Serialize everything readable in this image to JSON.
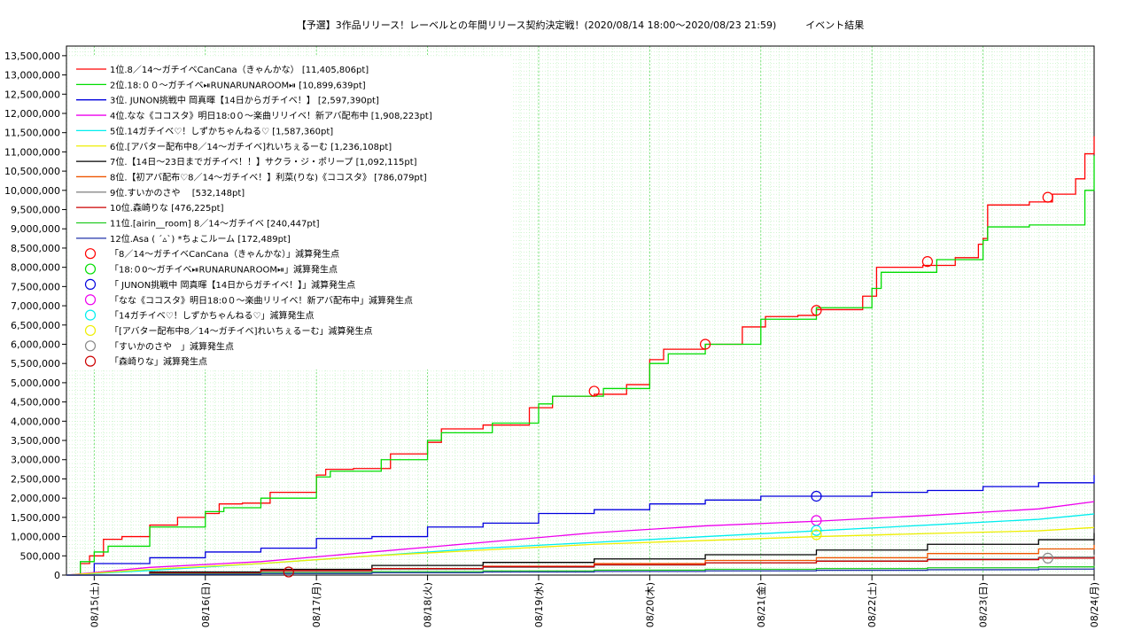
{
  "chart_data": {
    "type": "line",
    "title": "【予選】3作品リリース！レーベルとの年間リリース契約決定戦！(2020/08/14 18:00〜2020/08/23 21:59)　　　イベント結果",
    "xlabel": "",
    "ylabel": "",
    "x_ticks": [
      "08/15(土)",
      "08/16(日)",
      "08/17(月)",
      "08/18(火)",
      "08/19(水)",
      "08/20(木)",
      "08/21(金)",
      "08/22(土)",
      "08/23(日)",
      "08/24(月)"
    ],
    "xlim": [
      "2020-08-14 18:00",
      "2020-08-24 00:00"
    ],
    "ylim": [
      0,
      13750000
    ],
    "y_ticks": [
      0,
      500000,
      1000000,
      1500000,
      2000000,
      2500000,
      3000000,
      3500000,
      4000000,
      4500000,
      5000000,
      5500000,
      6000000,
      6500000,
      7000000,
      7500000,
      8000000,
      8500000,
      9000000,
      9500000,
      10000000,
      10500000,
      11000000,
      11500000,
      12000000,
      12500000,
      13000000,
      13500000
    ],
    "grid": true,
    "legend_position": "top-left",
    "series": [
      {
        "name": "1位.8／14〜ガチイベCanCana（きゃんかな）  [11,405,806pt]",
        "color": "#ff0000",
        "step": true,
        "points": [
          [
            "2020-08-14 18:00",
            0
          ],
          [
            "2020-08-14 21:00",
            300000
          ],
          [
            "2020-08-14 23:00",
            500000
          ],
          [
            "2020-08-15 02:00",
            930000
          ],
          [
            "2020-08-15 06:00",
            1000000
          ],
          [
            "2020-08-15 12:00",
            1300000
          ],
          [
            "2020-08-15 18:00",
            1500000
          ],
          [
            "2020-08-16 00:00",
            1600000
          ],
          [
            "2020-08-16 03:00",
            1850000
          ],
          [
            "2020-08-16 08:00",
            1870000
          ],
          [
            "2020-08-16 14:00",
            2150000
          ],
          [
            "2020-08-17 00:00",
            2600000
          ],
          [
            "2020-08-17 02:00",
            2750000
          ],
          [
            "2020-08-17 08:00",
            2770000
          ],
          [
            "2020-08-17 16:00",
            3150000
          ],
          [
            "2020-08-18 00:00",
            3450000
          ],
          [
            "2020-08-18 03:00",
            3800000
          ],
          [
            "2020-08-18 12:00",
            3900000
          ],
          [
            "2020-08-18 22:00",
            4350000
          ],
          [
            "2020-08-19 03:00",
            4650000
          ],
          [
            "2020-08-19 12:00",
            4700000
          ],
          [
            "2020-08-19 19:00",
            4950000
          ],
          [
            "2020-08-20 00:00",
            5600000
          ],
          [
            "2020-08-20 03:00",
            5870000
          ],
          [
            "2020-08-20 12:00",
            6000000
          ],
          [
            "2020-08-20 20:00",
            6450000
          ],
          [
            "2020-08-21 01:00",
            6720000
          ],
          [
            "2020-08-21 08:00",
            6750000
          ],
          [
            "2020-08-21 12:00",
            6900000
          ],
          [
            "2020-08-21 22:00",
            7250000
          ],
          [
            "2020-08-22 01:00",
            8000000
          ],
          [
            "2020-08-22 11:00",
            8050000
          ],
          [
            "2020-08-22 18:00",
            8250000
          ],
          [
            "2020-08-22 23:00",
            8600000
          ],
          [
            "2020-08-23 00:00",
            8750000
          ],
          [
            "2020-08-23 01:00",
            9620000
          ],
          [
            "2020-08-23 10:00",
            9700000
          ],
          [
            "2020-08-23 15:00",
            9900000
          ],
          [
            "2020-08-23 20:00",
            10300000
          ],
          [
            "2020-08-23 22:00",
            10950000
          ],
          [
            "2020-08-24 00:00",
            11405806
          ]
        ]
      },
      {
        "name": "2位.18:００〜ガチイベ⏯RUNARUNAROOM⏯  [10,899,639pt]",
        "color": "#00dd00",
        "step": true,
        "points": [
          [
            "2020-08-14 18:00",
            0
          ],
          [
            "2020-08-14 21:00",
            350000
          ],
          [
            "2020-08-15 00:00",
            600000
          ],
          [
            "2020-08-15 03:00",
            750000
          ],
          [
            "2020-08-15 12:00",
            1250000
          ],
          [
            "2020-08-16 00:00",
            1650000
          ],
          [
            "2020-08-16 04:00",
            1750000
          ],
          [
            "2020-08-16 12:00",
            2000000
          ],
          [
            "2020-08-17 00:00",
            2550000
          ],
          [
            "2020-08-17 03:00",
            2700000
          ],
          [
            "2020-08-17 14:00",
            3000000
          ],
          [
            "2020-08-18 00:00",
            3500000
          ],
          [
            "2020-08-18 03:00",
            3700000
          ],
          [
            "2020-08-18 14:00",
            3950000
          ],
          [
            "2020-08-19 00:00",
            4450000
          ],
          [
            "2020-08-19 03:00",
            4650000
          ],
          [
            "2020-08-19 14:00",
            4850000
          ],
          [
            "2020-08-20 00:00",
            5500000
          ],
          [
            "2020-08-20 04:00",
            5750000
          ],
          [
            "2020-08-20 12:00",
            6000000
          ],
          [
            "2020-08-21 00:00",
            6650000
          ],
          [
            "2020-08-21 12:00",
            6950000
          ],
          [
            "2020-08-22 00:00",
            7450000
          ],
          [
            "2020-08-22 02:00",
            7870000
          ],
          [
            "2020-08-22 14:00",
            8200000
          ],
          [
            "2020-08-23 00:00",
            8700000
          ],
          [
            "2020-08-23 01:00",
            9050000
          ],
          [
            "2020-08-23 10:00",
            9100000
          ],
          [
            "2020-08-23 22:00",
            10000000
          ],
          [
            "2020-08-24 00:00",
            10899639
          ]
        ]
      },
      {
        "name": "3位. JUNON挑戦中 岡真暉【14日からガチイベ！】 [2,597,390pt]",
        "color": "#0000dd",
        "step": true,
        "points": [
          [
            "2020-08-14 18:00",
            0
          ],
          [
            "2020-08-15 00:00",
            300000
          ],
          [
            "2020-08-15 12:00",
            450000
          ],
          [
            "2020-08-16 00:00",
            600000
          ],
          [
            "2020-08-16 12:00",
            700000
          ],
          [
            "2020-08-17 00:00",
            950000
          ],
          [
            "2020-08-17 12:00",
            1000000
          ],
          [
            "2020-08-18 00:00",
            1250000
          ],
          [
            "2020-08-18 12:00",
            1350000
          ],
          [
            "2020-08-19 00:00",
            1600000
          ],
          [
            "2020-08-19 12:00",
            1700000
          ],
          [
            "2020-08-20 00:00",
            1850000
          ],
          [
            "2020-08-20 12:00",
            1950000
          ],
          [
            "2020-08-21 00:00",
            2050000
          ],
          [
            "2020-08-22 00:00",
            2150000
          ],
          [
            "2020-08-22 12:00",
            2200000
          ],
          [
            "2020-08-23 00:00",
            2300000
          ],
          [
            "2020-08-23 12:00",
            2400000
          ],
          [
            "2020-08-24 00:00",
            2597390
          ]
        ]
      },
      {
        "name": "4位.なな《ココスタ》明日18:0０〜楽曲リリイベ！新アバ配布中 [1,908,223pt]",
        "color": "#ee00ee",
        "step": false,
        "points": [
          [
            "2020-08-14 18:00",
            0
          ],
          [
            "2020-08-15 12:00",
            200000
          ],
          [
            "2020-08-16 12:00",
            350000
          ],
          [
            "2020-08-17 12:00",
            600000
          ],
          [
            "2020-08-18 12:00",
            850000
          ],
          [
            "2020-08-19 12:00",
            1100000
          ],
          [
            "2020-08-20 12:00",
            1280000
          ],
          [
            "2020-08-21 12:00",
            1400000
          ],
          [
            "2020-08-22 12:00",
            1550000
          ],
          [
            "2020-08-23 12:00",
            1720000
          ],
          [
            "2020-08-24 00:00",
            1908223
          ]
        ]
      },
      {
        "name": "5位.14ガチイベ♡！しずかちゃんねる♡ [1,587,360pt]",
        "color": "#00eeee",
        "step": false,
        "points": [
          [
            "2020-08-14 18:00",
            0
          ],
          [
            "2020-08-15 12:00",
            120000
          ],
          [
            "2020-08-16 12:00",
            300000
          ],
          [
            "2020-08-17 12:00",
            500000
          ],
          [
            "2020-08-18 12:00",
            700000
          ],
          [
            "2020-08-19 12:00",
            850000
          ],
          [
            "2020-08-20 12:00",
            1000000
          ],
          [
            "2020-08-21 12:00",
            1150000
          ],
          [
            "2020-08-22 12:00",
            1300000
          ],
          [
            "2020-08-23 12:00",
            1450000
          ],
          [
            "2020-08-24 00:00",
            1587360
          ]
        ]
      },
      {
        "name": "6位.[アバター配布中8／14〜ガチイベ]れいちぇるーむ [1,236,108pt]",
        "color": "#eeee00",
        "step": false,
        "points": [
          [
            "2020-08-14 18:00",
            0
          ],
          [
            "2020-08-15 12:00",
            150000
          ],
          [
            "2020-08-16 12:00",
            300000
          ],
          [
            "2020-08-17 12:00",
            500000
          ],
          [
            "2020-08-18 12:00",
            650000
          ],
          [
            "2020-08-19 12:00",
            800000
          ],
          [
            "2020-08-20 12:00",
            900000
          ],
          [
            "2020-08-21 12:00",
            1000000
          ],
          [
            "2020-08-22 12:00",
            1080000
          ],
          [
            "2020-08-23 12:00",
            1150000
          ],
          [
            "2020-08-24 00:00",
            1236108
          ]
        ]
      },
      {
        "name": "7位.【14日〜23日までガチイベ！！】サクラ・ジ・ポリープ [1,092,115pt]",
        "color": "#000000",
        "step": true,
        "points": [
          [
            "2020-08-14 18:00",
            0
          ],
          [
            "2020-08-15 12:00",
            80000
          ],
          [
            "2020-08-16 12:00",
            150000
          ],
          [
            "2020-08-17 12:00",
            250000
          ],
          [
            "2020-08-18 12:00",
            330000
          ],
          [
            "2020-08-19 12:00",
            420000
          ],
          [
            "2020-08-20 12:00",
            530000
          ],
          [
            "2020-08-21 12:00",
            650000
          ],
          [
            "2020-08-22 12:00",
            800000
          ],
          [
            "2020-08-23 12:00",
            920000
          ],
          [
            "2020-08-24 00:00",
            1092115
          ]
        ]
      },
      {
        "name": "8位.【初アバ配布♡8／14〜ガチイベ！】利菜(りな)《ココスタ》 [786,079pt]",
        "color": "#ee5500",
        "step": true,
        "points": [
          [
            "2020-08-14 18:00",
            0
          ],
          [
            "2020-08-15 12:00",
            50000
          ],
          [
            "2020-08-16 12:00",
            100000
          ],
          [
            "2020-08-17 12:00",
            170000
          ],
          [
            "2020-08-18 12:00",
            230000
          ],
          [
            "2020-08-19 12:00",
            300000
          ],
          [
            "2020-08-20 12:00",
            380000
          ],
          [
            "2020-08-21 12:00",
            450000
          ],
          [
            "2020-08-22 12:00",
            560000
          ],
          [
            "2020-08-23 12:00",
            680000
          ],
          [
            "2020-08-24 00:00",
            786079
          ]
        ]
      },
      {
        "name": "9位.すいかのさや　 [532,148pt]",
        "color": "#888888",
        "step": true,
        "points": [
          [
            "2020-08-14 18:00",
            0
          ],
          [
            "2020-08-15 12:00",
            50000
          ],
          [
            "2020-08-16 12:00",
            100000
          ],
          [
            "2020-08-17 12:00",
            150000
          ],
          [
            "2020-08-18 12:00",
            200000
          ],
          [
            "2020-08-19 12:00",
            260000
          ],
          [
            "2020-08-20 12:00",
            320000
          ],
          [
            "2020-08-21 12:00",
            370000
          ],
          [
            "2020-08-22 12:00",
            420000
          ],
          [
            "2020-08-23 12:00",
            470000
          ],
          [
            "2020-08-24 00:00",
            532148
          ]
        ]
      },
      {
        "name": "10位.森崎りな [476,225pt]",
        "color": "#cc0000",
        "step": true,
        "points": [
          [
            "2020-08-14 18:00",
            0
          ],
          [
            "2020-08-15 12:00",
            50000
          ],
          [
            "2020-08-16 12:00",
            120000
          ],
          [
            "2020-08-17 12:00",
            170000
          ],
          [
            "2020-08-18 12:00",
            220000
          ],
          [
            "2020-08-19 12:00",
            270000
          ],
          [
            "2020-08-20 12:00",
            320000
          ],
          [
            "2020-08-21 12:00",
            360000
          ],
          [
            "2020-08-22 12:00",
            400000
          ],
          [
            "2020-08-23 12:00",
            440000
          ],
          [
            "2020-08-24 00:00",
            476225
          ]
        ]
      },
      {
        "name": "11位.[airin__room] 8／14〜ガチイベ [240,447pt]",
        "color": "#22cc22",
        "step": true,
        "points": [
          [
            "2020-08-14 18:00",
            0
          ],
          [
            "2020-08-15 12:00",
            30000
          ],
          [
            "2020-08-16 12:00",
            60000
          ],
          [
            "2020-08-17 12:00",
            90000
          ],
          [
            "2020-08-18 12:00",
            110000
          ],
          [
            "2020-08-19 12:00",
            130000
          ],
          [
            "2020-08-20 12:00",
            150000
          ],
          [
            "2020-08-21 12:00",
            170000
          ],
          [
            "2020-08-22 12:00",
            190000
          ],
          [
            "2020-08-23 12:00",
            215000
          ],
          [
            "2020-08-24 00:00",
            240447
          ]
        ]
      },
      {
        "name": "12位.Asa ( ´▵`) *ちょこルーム [172,489pt]",
        "color": "#2233aa",
        "step": true,
        "points": [
          [
            "2020-08-14 18:00",
            0
          ],
          [
            "2020-08-15 12:00",
            20000
          ],
          [
            "2020-08-16 12:00",
            40000
          ],
          [
            "2020-08-17 12:00",
            60000
          ],
          [
            "2020-08-18 12:00",
            80000
          ],
          [
            "2020-08-19 12:00",
            95000
          ],
          [
            "2020-08-20 12:00",
            110000
          ],
          [
            "2020-08-21 12:00",
            125000
          ],
          [
            "2020-08-22 12:00",
            140000
          ],
          [
            "2020-08-23 12:00",
            155000
          ],
          [
            "2020-08-24 00:00",
            172489
          ]
        ]
      }
    ],
    "markers": [
      {
        "label": "「8／14〜ガチイベCanCana（きゃんかな）」減算発生点",
        "color": "#ff0000",
        "points": [
          [
            "2020-08-19 12:00",
            4780000
          ],
          [
            "2020-08-20 12:00",
            6000000
          ],
          [
            "2020-08-21 12:00",
            6880000
          ],
          [
            "2020-08-22 12:00",
            8150000
          ],
          [
            "2020-08-23 14:00",
            9820000
          ]
        ]
      },
      {
        "label": "「18:０0〜ガチイベ⏯RUNARUNAROOM⏯」減算発生点",
        "color": "#00dd00",
        "points": []
      },
      {
        "label": "「 JUNON挑戦中 岡真暉【14日からガチイベ！】」減算発生点",
        "color": "#0000dd",
        "points": [
          [
            "2020-08-21 12:00",
            2050000
          ]
        ]
      },
      {
        "label": "「なな《ココスタ》明日18:0０〜楽曲リリイベ！新アバ配布中」減算発生点",
        "color": "#ee00ee",
        "points": [
          [
            "2020-08-21 12:00",
            1420000
          ]
        ]
      },
      {
        "label": "「14ガチイベ♡！しずかちゃんねる♡」減算発生点",
        "color": "#00eeee",
        "points": [
          [
            "2020-08-21 12:00",
            1160000
          ]
        ]
      },
      {
        "label": "「[アバター配布中8／14〜ガチイベ]れいちぇるーむ」減算発生点",
        "color": "#eeee00",
        "points": [
          [
            "2020-08-21 12:00",
            1050000
          ]
        ]
      },
      {
        "label": "「すいかのさや　」減算発生点",
        "color": "#888888",
        "points": [
          [
            "2020-08-23 14:00",
            440000
          ]
        ]
      },
      {
        "label": "「森崎りな」減算発生点",
        "color": "#cc0000",
        "points": [
          [
            "2020-08-16 18:00",
            80000
          ]
        ]
      }
    ]
  }
}
